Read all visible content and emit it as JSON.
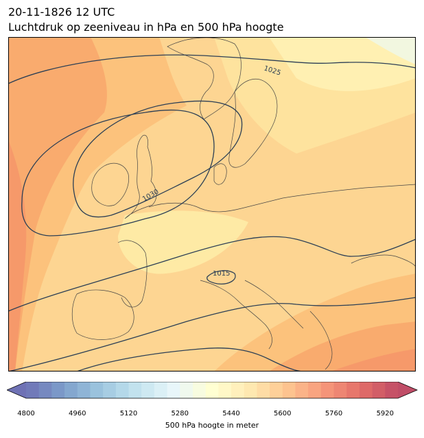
{
  "header": {
    "datetime": "20-11-1826 12 UTC",
    "subtitle": "Luchtdruk op zeeniveau in hPa en 500 hPa hoogte"
  },
  "map": {
    "projection": "europe",
    "isobar_labels": [
      "1025",
      "1030",
      "1015"
    ],
    "isobar_color": "#2b3f55",
    "coast_color": "#444444"
  },
  "colorbar": {
    "label": "500 hPa hoogte in meter",
    "ticks": [
      "4800",
      "4960",
      "5120",
      "5280",
      "5440",
      "5600",
      "5760",
      "5920"
    ],
    "range": [
      4800,
      5960
    ],
    "step": 40,
    "colormap": "RdYlBu_r",
    "extend": "both"
  }
}
